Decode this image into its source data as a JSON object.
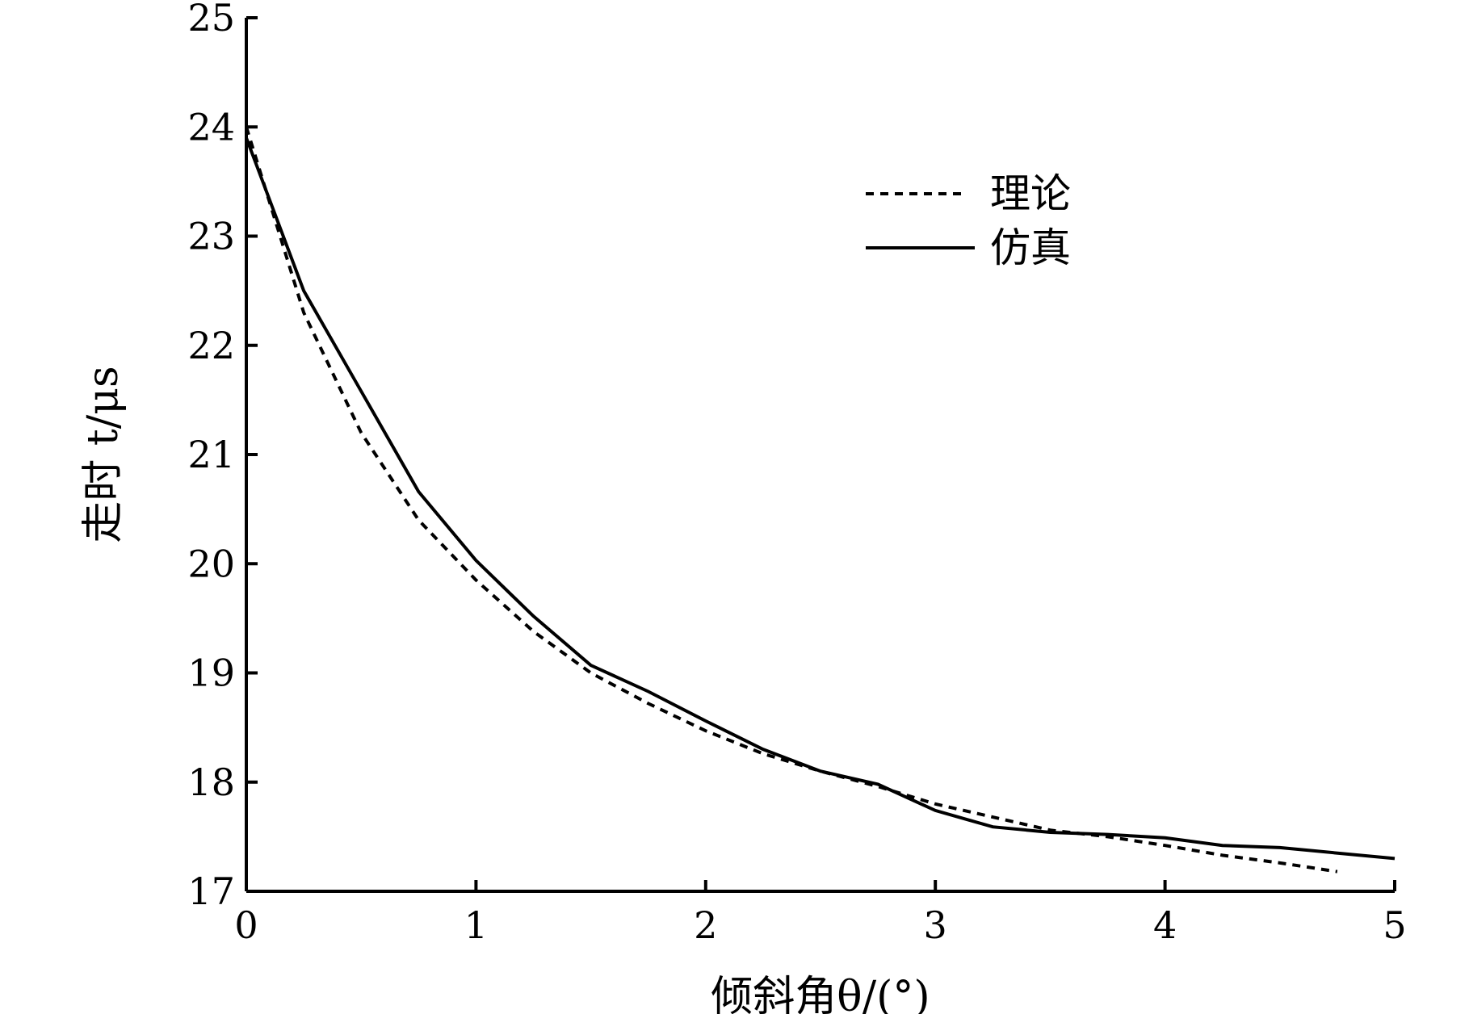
{
  "chart_data": {
    "type": "line",
    "xlabel": "倾斜角θ/(°)",
    "ylabel": "走时 t/μs",
    "xlim": [
      0,
      5
    ],
    "ylim": [
      17,
      25
    ],
    "x_ticks": [
      "0",
      "1",
      "2",
      "3",
      "4",
      "5"
    ],
    "y_ticks": [
      "17",
      "18",
      "19",
      "20",
      "21",
      "22",
      "23",
      "24",
      "25"
    ],
    "grid": false,
    "legend_position": "top-right",
    "series": [
      {
        "name": "理论",
        "style": "dashed",
        "color": "#000000",
        "x": [
          0,
          0.25,
          0.5,
          0.75,
          1,
          1.25,
          1.5,
          1.75,
          2,
          2.25,
          2.5,
          2.75,
          3,
          3.25,
          3.5,
          3.75,
          4,
          4.25,
          4.5,
          4.75
        ],
        "y": [
          24.0,
          22.3,
          21.2,
          20.4,
          19.85,
          19.38,
          19.0,
          18.72,
          18.47,
          18.26,
          18.1,
          17.96,
          17.8,
          17.68,
          17.56,
          17.5,
          17.42,
          17.33,
          17.26,
          17.18
        ]
      },
      {
        "name": "仿真",
        "style": "solid",
        "color": "#000000",
        "x": [
          0,
          0.25,
          0.5,
          0.75,
          1,
          1.25,
          1.5,
          1.75,
          2,
          2.25,
          2.5,
          2.75,
          3,
          3.25,
          3.5,
          3.75,
          4,
          4.25,
          4.5,
          5
        ],
        "y": [
          23.9,
          22.5,
          21.58,
          20.66,
          20.03,
          19.52,
          19.07,
          18.83,
          18.56,
          18.3,
          18.1,
          17.98,
          17.74,
          17.59,
          17.54,
          17.52,
          17.49,
          17.42,
          17.4,
          17.3
        ]
      }
    ]
  }
}
